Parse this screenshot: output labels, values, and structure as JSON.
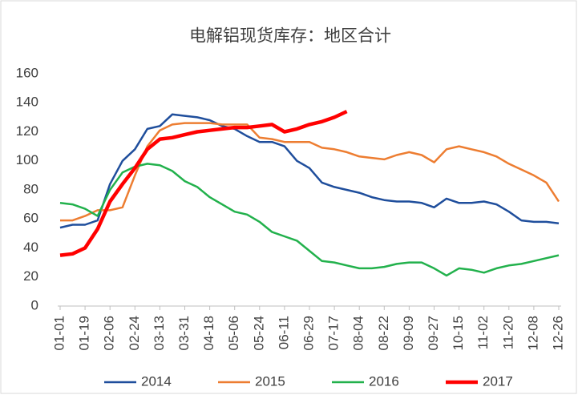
{
  "chart_data": {
    "type": "line",
    "title": "电解铝现货库存：地区合计",
    "categories": [
      "01-01",
      null,
      "01-19",
      null,
      "02-06",
      null,
      "02-24",
      null,
      "03-13",
      null,
      "03-31",
      null,
      "04-18",
      null,
      "05-06",
      null,
      "05-24",
      null,
      "06-11",
      null,
      "06-29",
      null,
      "07-17",
      null,
      "08-04",
      null,
      "08-22",
      null,
      "09-09",
      null,
      "09-27",
      null,
      "10-15",
      null,
      "11-02",
      null,
      "11-20",
      null,
      "12-08",
      null,
      "12-26"
    ],
    "series": [
      {
        "name": "2014",
        "color": "#1f4e9c",
        "width": 2.5,
        "values": [
          54,
          56,
          56,
          59,
          84,
          100,
          108,
          122,
          124,
          132,
          131,
          130,
          128,
          124,
          122,
          117,
          113,
          113,
          110,
          100,
          95,
          85,
          82,
          80,
          78,
          75,
          73,
          72,
          72,
          71,
          68,
          74,
          71,
          71,
          72,
          70,
          65,
          59,
          58,
          58,
          57
        ]
      },
      {
        "name": "2015",
        "color": "#ed7d31",
        "width": 2.5,
        "values": [
          59,
          59,
          62,
          66,
          66,
          68,
          90,
          110,
          121,
          125,
          126,
          126,
          126,
          125,
          125,
          125,
          116,
          115,
          113,
          113,
          113,
          109,
          108,
          106,
          103,
          102,
          101,
          104,
          106,
          104,
          99,
          108,
          110,
          108,
          106,
          103,
          98,
          94,
          90,
          85,
          72
        ]
      },
      {
        "name": "2016",
        "color": "#22b14c",
        "width": 2.5,
        "values": [
          71,
          70,
          67,
          62,
          80,
          92,
          96,
          98,
          97,
          93,
          86,
          82,
          75,
          70,
          65,
          63,
          58,
          51,
          48,
          45,
          38,
          31,
          30,
          28,
          26,
          26,
          27,
          29,
          30,
          30,
          26,
          21,
          26,
          25,
          23,
          26,
          28,
          29,
          31,
          33,
          35
        ]
      },
      {
        "name": "2017",
        "color": "#ff0000",
        "width": 4.5,
        "values": [
          35,
          36,
          40,
          53,
          72,
          84,
          95,
          108,
          115,
          116,
          118,
          120,
          121,
          122,
          123,
          123,
          124,
          125,
          120,
          122,
          125,
          127,
          130,
          134,
          null,
          null,
          null,
          null,
          null,
          null,
          null,
          null,
          null,
          null,
          null,
          null,
          null,
          null,
          null,
          null,
          null
        ]
      }
    ],
    "ylim": [
      0,
      160
    ],
    "yticks": [
      0,
      20,
      40,
      60,
      80,
      100,
      120,
      140,
      160
    ],
    "grid": false,
    "legend": "bottom"
  }
}
